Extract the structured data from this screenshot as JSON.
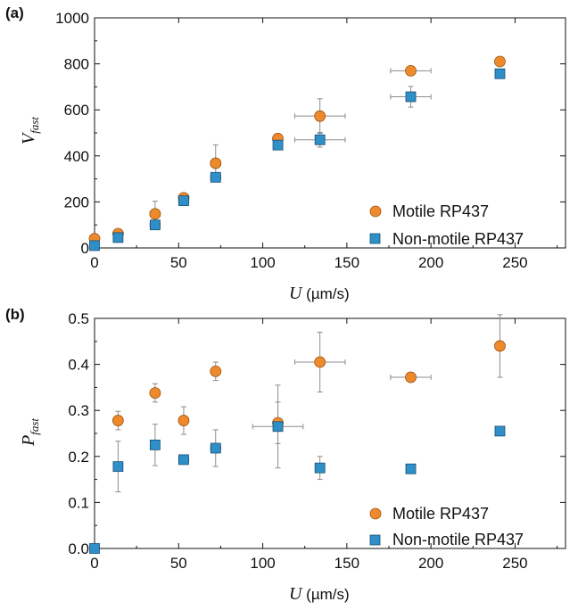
{
  "colors": {
    "motile": "#ee8a2c",
    "nonmotile": "#2f8fc8",
    "errorbar": "#8c8c8c",
    "axis": "#111111"
  },
  "chart_data": [
    {
      "type": "scatter",
      "panel_label": "(a)",
      "xlabel": {
        "symbol": "U",
        "unit": " (µm/s)"
      },
      "ylabel": {
        "symbol": "V",
        "subscript": "fast"
      },
      "xlim": [
        0,
        280
      ],
      "ylim": [
        0,
        1000
      ],
      "xticks": [
        0,
        50,
        100,
        150,
        200,
        250
      ],
      "yticks": [
        0,
        200,
        400,
        600,
        800,
        1000
      ],
      "legend_position": "bottom-right",
      "series": [
        {
          "name": "Motile RP437",
          "marker": "circle",
          "points": [
            {
              "x": 0,
              "y": 40,
              "xerr": 0,
              "yerr": 0
            },
            {
              "x": 14,
              "y": 62,
              "xerr": 0,
              "yerr": 0
            },
            {
              "x": 36,
              "y": 148,
              "xerr": 3,
              "yerr": 55
            },
            {
              "x": 53,
              "y": 218,
              "xerr": 3,
              "yerr": 0
            },
            {
              "x": 72,
              "y": 368,
              "xerr": 3,
              "yerr": 80
            },
            {
              "x": 109,
              "y": 475,
              "xerr": 0,
              "yerr": 0
            },
            {
              "x": 134,
              "y": 573,
              "xerr": 15,
              "yerr": 75
            },
            {
              "x": 188,
              "y": 770,
              "xerr": 12,
              "yerr": 0
            },
            {
              "x": 241,
              "y": 810,
              "xerr": 0,
              "yerr": 0
            }
          ]
        },
        {
          "name": "Non-motile RP437",
          "marker": "square",
          "points": [
            {
              "x": 0,
              "y": 10,
              "xerr": 0,
              "yerr": 0
            },
            {
              "x": 14,
              "y": 45,
              "xerr": 0,
              "yerr": 0
            },
            {
              "x": 36,
              "y": 100,
              "xerr": 3,
              "yerr": 0
            },
            {
              "x": 53,
              "y": 205,
              "xerr": 3,
              "yerr": 0
            },
            {
              "x": 72,
              "y": 307,
              "xerr": 3,
              "yerr": 0
            },
            {
              "x": 109,
              "y": 447,
              "xerr": 0,
              "yerr": 0
            },
            {
              "x": 134,
              "y": 470,
              "xerr": 15,
              "yerr": 32
            },
            {
              "x": 188,
              "y": 657,
              "xerr": 12,
              "yerr": 45
            },
            {
              "x": 241,
              "y": 757,
              "xerr": 0,
              "yerr": 0
            }
          ]
        }
      ]
    },
    {
      "type": "scatter",
      "panel_label": "(b)",
      "xlabel": {
        "symbol": "U",
        "unit": " (µm/s)"
      },
      "ylabel": {
        "symbol": "P",
        "subscript": "fast"
      },
      "xlim": [
        0,
        280
      ],
      "ylim": [
        0.0,
        0.5
      ],
      "xticks": [
        0,
        50,
        100,
        150,
        200,
        250
      ],
      "yticks": [
        0.0,
        0.1,
        0.2,
        0.3,
        0.4,
        0.5
      ],
      "legend_position": "bottom-right",
      "series": [
        {
          "name": "Motile RP437",
          "marker": "circle",
          "points": [
            {
              "x": 14,
              "y": 0.278,
              "xerr": 0,
              "yerr": 0.02
            },
            {
              "x": 36,
              "y": 0.338,
              "xerr": 0,
              "yerr": 0.02
            },
            {
              "x": 53,
              "y": 0.278,
              "xerr": 0,
              "yerr": 0.03
            },
            {
              "x": 72,
              "y": 0.385,
              "xerr": 0,
              "yerr": 0.02
            },
            {
              "x": 109,
              "y": 0.273,
              "xerr": 0,
              "yerr": 0.045
            },
            {
              "x": 134,
              "y": 0.405,
              "xerr": 15,
              "yerr": 0.065
            },
            {
              "x": 188,
              "y": 0.372,
              "xerr": 12,
              "yerr": 0
            },
            {
              "x": 241,
              "y": 0.44,
              "xerr": 0,
              "yerr": 0.068
            }
          ]
        },
        {
          "name": "Non-motile RP437",
          "marker": "square",
          "points": [
            {
              "x": 0,
              "y": 0.0,
              "xerr": 0,
              "yerr": 0
            },
            {
              "x": 14,
              "y": 0.178,
              "xerr": 0,
              "yerr": 0.055
            },
            {
              "x": 36,
              "y": 0.225,
              "xerr": 0,
              "yerr": 0.045
            },
            {
              "x": 53,
              "y": 0.193,
              "xerr": 3,
              "yerr": 0
            },
            {
              "x": 72,
              "y": 0.218,
              "xerr": 3,
              "yerr": 0.04
            },
            {
              "x": 109,
              "y": 0.265,
              "xerr": 15,
              "yerr": 0.09
            },
            {
              "x": 134,
              "y": 0.175,
              "xerr": 0,
              "yerr": 0.025
            },
            {
              "x": 188,
              "y": 0.173,
              "xerr": 0,
              "yerr": 0
            },
            {
              "x": 241,
              "y": 0.255,
              "xerr": 0,
              "yerr": 0.008
            }
          ]
        }
      ]
    }
  ]
}
